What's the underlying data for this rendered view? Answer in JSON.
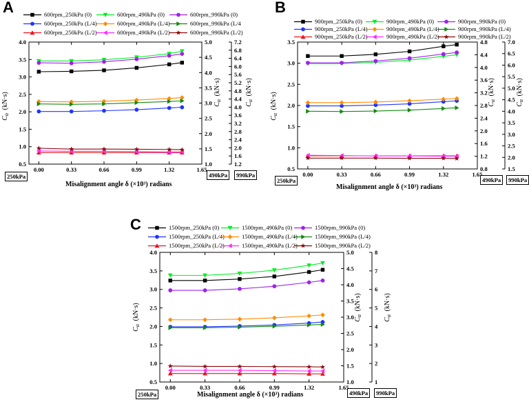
{
  "axis_units": {
    "x_suffix": "radians",
    "y_unit": "(kN·s)",
    "y_symbol": "C",
    "y_subscript": "α"
  },
  "colors": {
    "black": "#000000",
    "green": "#00ee22",
    "purple": "#a020f0",
    "blue": "#1f34ff",
    "orange": "#ff8c00",
    "dkgreen": "#138a13",
    "red": "#e8141e",
    "magenta": "#ff2bff",
    "darkred": "#8b0a0a"
  },
  "chart_data": [
    {
      "panel": "A",
      "type": "line",
      "xlabel": "Misalignment angle δ (×10³) radians",
      "x": [
        0.0,
        0.33,
        0.66,
        0.99,
        1.32,
        1.45
      ],
      "xticks": [
        "0.00",
        "0.33",
        "0.66",
        "0.99",
        "1.32",
        "1.65"
      ],
      "xlim": [
        -0.1,
        1.65
      ],
      "axis_box_labels": [
        "250kPa",
        "490kPa",
        "990kPa"
      ],
      "axes": [
        {
          "side": "left",
          "label": "C α (kN·s)",
          "ylim": [
            0.5,
            4.0
          ],
          "ticks": [
            "0.5",
            "1.0",
            "1.5",
            "2.0",
            "2.5",
            "3.0",
            "3.5",
            "4.0"
          ]
        },
        {
          "side": "right",
          "label": "C α (kN·s)",
          "ylim": [
            1.0,
            5.0
          ],
          "ticks": [
            "1.0",
            "1.5",
            "2.0",
            "2.5",
            "3.0",
            "3.5",
            "4.0",
            "4.5",
            "5.0"
          ]
        },
        {
          "side": "right2",
          "label": "C α (kN·s)",
          "ylim": [
            1.2,
            7.2
          ],
          "ticks": [
            "1.2",
            "1.6",
            "2.0",
            "2.4",
            "2.8",
            "3.2",
            "3.6",
            "4.0",
            "4.4",
            "4.8",
            "5.2",
            "5.6",
            "6.0",
            "6.4",
            "6.8",
            "7.2"
          ]
        }
      ],
      "series": [
        {
          "name": "600rpm_250kPa (0)",
          "axis": 0,
          "color": "black",
          "marker": "square",
          "values": [
            3.15,
            3.16,
            3.19,
            3.26,
            3.36,
            3.41
          ]
        },
        {
          "name": "600rpm_490kPa (0)",
          "axis": 1,
          "color": "green",
          "marker": "triangle-down",
          "values": [
            4.38,
            4.38,
            4.42,
            4.5,
            4.62,
            4.7
          ]
        },
        {
          "name": "600rpm_990kPa (0)",
          "axis": 2,
          "color": "purple",
          "marker": "circle",
          "values": [
            6.18,
            6.16,
            6.23,
            6.36,
            6.53,
            6.62
          ]
        },
        {
          "name": "600rpm_250kPa (L/4)",
          "axis": 0,
          "color": "blue",
          "marker": "circle",
          "values": [
            2.01,
            2.01,
            2.03,
            2.06,
            2.11,
            2.13
          ]
        },
        {
          "name": "600rpm_490kPa (L/4)",
          "axis": 1,
          "color": "orange",
          "marker": "diamond",
          "values": [
            3.05,
            3.04,
            3.06,
            3.1,
            3.15,
            3.18
          ]
        },
        {
          "name": "600rpm_990kPa (L/4",
          "axis": 2,
          "color": "dkgreen",
          "marker": "triangle-right",
          "values": [
            4.16,
            4.14,
            4.16,
            4.22,
            4.28,
            4.31
          ]
        },
        {
          "name": "600rpm_250kPa (L/2)",
          "axis": 0,
          "color": "red",
          "marker": "triangle-up",
          "values": [
            0.83,
            0.83,
            0.83,
            0.83,
            0.83,
            0.83
          ]
        },
        {
          "name": "600rpm_490kPa (L/2)",
          "axis": 1,
          "color": "magenta",
          "marker": "triangle-left",
          "values": [
            1.43,
            1.42,
            1.42,
            1.41,
            1.4,
            1.4
          ]
        },
        {
          "name": "600rpm_990kPa (L/2)",
          "axis": 2,
          "color": "darkred",
          "marker": "star",
          "values": [
            1.98,
            1.94,
            1.94,
            1.93,
            1.92,
            1.91
          ]
        }
      ]
    },
    {
      "panel": "B",
      "type": "line",
      "xlabel": "Misalignment angle δ (×10³) radians",
      "x": [
        0.0,
        0.33,
        0.66,
        0.99,
        1.32,
        1.45
      ],
      "xticks": [
        "0.00",
        "0.33",
        "0.66",
        "0.99",
        "1.32",
        "1.65"
      ],
      "xlim": [
        -0.1,
        1.65
      ],
      "axis_box_labels": [
        "250kPa",
        "490kPa",
        "990kPa"
      ],
      "axes": [
        {
          "side": "left",
          "label": "C α (kN·s)",
          "ylim": [
            0.5,
            3.5
          ],
          "ticks": [
            "0.5",
            "1.0",
            "1.5",
            "2.0",
            "2.5",
            "3.0",
            "3.5"
          ]
        },
        {
          "side": "right",
          "label": "C α (kN·s)",
          "ylim": [
            0.8,
            4.8
          ],
          "ticks": [
            "0.8",
            "1.2",
            "1.6",
            "2.0",
            "2.4",
            "2.8",
            "3.2",
            "3.6",
            "4.0",
            "4.4",
            "4.8"
          ]
        },
        {
          "side": "right2",
          "label": "C α (kN·s)",
          "ylim": [
            1.5,
            7.0
          ],
          "ticks": [
            "1.5",
            "2.0",
            "2.5",
            "3.0",
            "3.5",
            "4.0",
            "4.5",
            "5.0",
            "5.5",
            "6.0",
            "6.5",
            "7.0"
          ]
        }
      ],
      "series": [
        {
          "name": "900rpm_250kPa (0)",
          "axis": 0,
          "color": "black",
          "marker": "square",
          "values": [
            3.17,
            3.17,
            3.21,
            3.28,
            3.4,
            3.44
          ]
        },
        {
          "name": "900rpm_490kPa (0)",
          "axis": 1,
          "color": "green",
          "marker": "triangle-down",
          "values": [
            4.12,
            4.12,
            4.16,
            4.23,
            4.35,
            4.4
          ]
        },
        {
          "name": "900rpm_990kPa (0)",
          "axis": 2,
          "color": "purple",
          "marker": "circle",
          "values": [
            6.1,
            6.1,
            6.18,
            6.3,
            6.48,
            6.55
          ]
        },
        {
          "name": "900rpm_250kPa (L/4)",
          "axis": 0,
          "color": "blue",
          "marker": "circle",
          "values": [
            1.99,
            1.99,
            2.01,
            2.04,
            2.09,
            2.11
          ]
        },
        {
          "name": "900rpm_490kPa (L/4)",
          "axis": 1,
          "color": "orange",
          "marker": "diamond",
          "values": [
            2.89,
            2.89,
            2.91,
            2.95,
            3.0,
            3.02
          ]
        },
        {
          "name": "900rpm_990kPa (L/4)",
          "axis": 2,
          "color": "dkgreen",
          "marker": "triangle-right",
          "values": [
            4.0,
            3.99,
            4.01,
            4.05,
            4.12,
            4.15
          ]
        },
        {
          "name": "900rpm_250kPa (L/2)",
          "axis": 0,
          "color": "red",
          "marker": "triangle-up",
          "values": [
            0.81,
            0.81,
            0.81,
            0.81,
            0.81,
            0.81
          ]
        },
        {
          "name": "900rpm_490kPa (L/2)",
          "axis": 1,
          "color": "magenta",
          "marker": "triangle-left",
          "values": [
            1.23,
            1.22,
            1.21,
            1.21,
            1.2,
            1.2
          ]
        },
        {
          "name": "900rpm_990kPa (L/2)",
          "axis": 2,
          "color": "darkred",
          "marker": "star",
          "values": [
            1.97,
            1.97,
            1.97,
            1.96,
            1.96,
            1.95
          ]
        }
      ]
    },
    {
      "panel": "C",
      "type": "line",
      "xlabel": "Misalignment angle δ (×10³) radians",
      "x": [
        0.0,
        0.33,
        0.66,
        0.99,
        1.32,
        1.45
      ],
      "xticks": [
        "0.00",
        "0.33",
        "0.66",
        "0.99",
        "1.32",
        "1.65"
      ],
      "xlim": [
        -0.1,
        1.65
      ],
      "axis_box_labels": [
        "250kPa",
        "490kPa",
        "990kPa"
      ],
      "axes": [
        {
          "side": "left",
          "label": "C α (kN·s)",
          "ylim": [
            0.5,
            4.0
          ],
          "ticks": [
            "0.5",
            "1.0",
            "1.5",
            "2.0",
            "2.5",
            "3.0",
            "3.5",
            "4.0"
          ]
        },
        {
          "side": "right",
          "label": "C α (kN·s)",
          "ylim": [
            1.0,
            5.0
          ],
          "ticks": [
            "1.0",
            "1.5",
            "2.0",
            "2.5",
            "3.0",
            "3.5",
            "4.0",
            "4.5",
            "5.0"
          ]
        },
        {
          "side": "right2",
          "label": "C α (kN·s)",
          "ylim": [
            1.0,
            8.0
          ],
          "ticks": [
            "1",
            "2",
            "3",
            "4",
            "5",
            "6",
            "7",
            "8"
          ]
        }
      ],
      "series": [
        {
          "name": "1500rpm_250kPa (0)",
          "axis": 0,
          "color": "black",
          "marker": "square",
          "values": [
            3.24,
            3.24,
            3.28,
            3.35,
            3.47,
            3.53
          ]
        },
        {
          "name": "1500rpm_490kPa (0)",
          "axis": 1,
          "color": "green",
          "marker": "triangle-down",
          "values": [
            4.29,
            4.29,
            4.35,
            4.45,
            4.6,
            4.67
          ]
        },
        {
          "name": "1500rpm_990kPa (0)",
          "axis": 2,
          "color": "purple",
          "marker": "circle",
          "values": [
            5.95,
            5.95,
            6.03,
            6.17,
            6.38,
            6.48
          ]
        },
        {
          "name": "1500rpm_250kPa (L/4)",
          "axis": 0,
          "color": "blue",
          "marker": "circle",
          "values": [
            1.99,
            1.99,
            2.01,
            2.04,
            2.09,
            2.12
          ]
        },
        {
          "name": "1500rpm_490kPa (L/4)",
          "axis": 1,
          "color": "orange",
          "marker": "diamond",
          "values": [
            2.92,
            2.92,
            2.94,
            2.98,
            3.04,
            3.07
          ]
        },
        {
          "name": "1500rpm_990kPa (L/4)",
          "axis": 2,
          "color": "dkgreen",
          "marker": "triangle-right",
          "values": [
            3.93,
            3.93,
            3.96,
            4.01,
            4.08,
            4.11
          ]
        },
        {
          "name": "1500rpm_250kPa (L/2)",
          "axis": 0,
          "color": "red",
          "marker": "triangle-up",
          "values": [
            0.73,
            0.73,
            0.73,
            0.73,
            0.72,
            0.72
          ]
        },
        {
          "name": "1500rpm_490kPa (L/2)",
          "axis": 1,
          "color": "magenta",
          "marker": "triangle-left",
          "values": [
            1.36,
            1.36,
            1.36,
            1.35,
            1.34,
            1.34
          ]
        },
        {
          "name": "1500rpm_990kPa (L/2)",
          "axis": 2,
          "color": "darkred",
          "marker": "star",
          "values": [
            1.86,
            1.84,
            1.84,
            1.83,
            1.82,
            1.81
          ]
        }
      ]
    }
  ]
}
